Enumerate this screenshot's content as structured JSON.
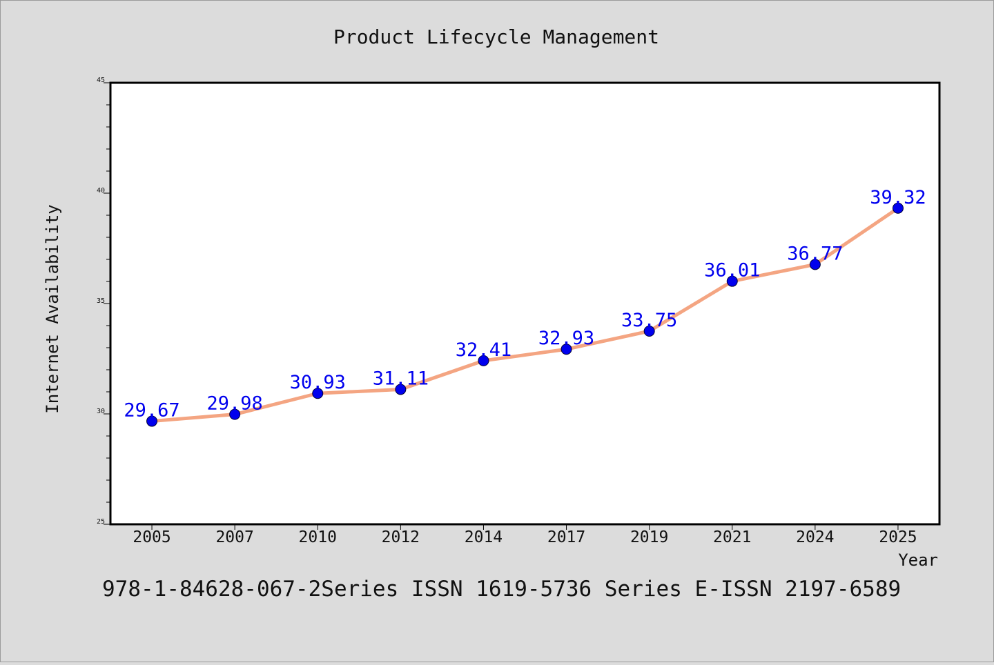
{
  "page": {
    "background": "#dcdcdc",
    "footer_text": "978-1-84628-067-2Series ISSN 1619-5736 Series E-ISSN 2197-6589"
  },
  "chart_data": {
    "type": "line",
    "title": "Product Lifecycle Management",
    "xlabel": "Year",
    "ylabel": "Internet Availability",
    "categories": [
      "2005",
      "2007",
      "2010",
      "2012",
      "2014",
      "2017",
      "2019",
      "2021",
      "2024",
      "2025"
    ],
    "series": [
      {
        "values": [
          29.67,
          29.98,
          30.93,
          31.11,
          32.41,
          32.93,
          33.75,
          36.01,
          36.77,
          39.32
        ],
        "data_labels": [
          "29.67",
          "29.98",
          "30.93",
          "31.11",
          "32.41",
          "32.93",
          "33.75",
          "36.01",
          "36.77",
          "39.32"
        ],
        "line_color": "#f4a582",
        "marker_color": "#0000ee",
        "label_color": "#0000ee"
      }
    ],
    "ylim": [
      25,
      45
    ],
    "yticks": [
      "25",
      "30",
      "35",
      "40",
      "45"
    ],
    "y_minor_step": 1,
    "grid": false,
    "legend": "none",
    "plot_background": "#ffffff"
  }
}
